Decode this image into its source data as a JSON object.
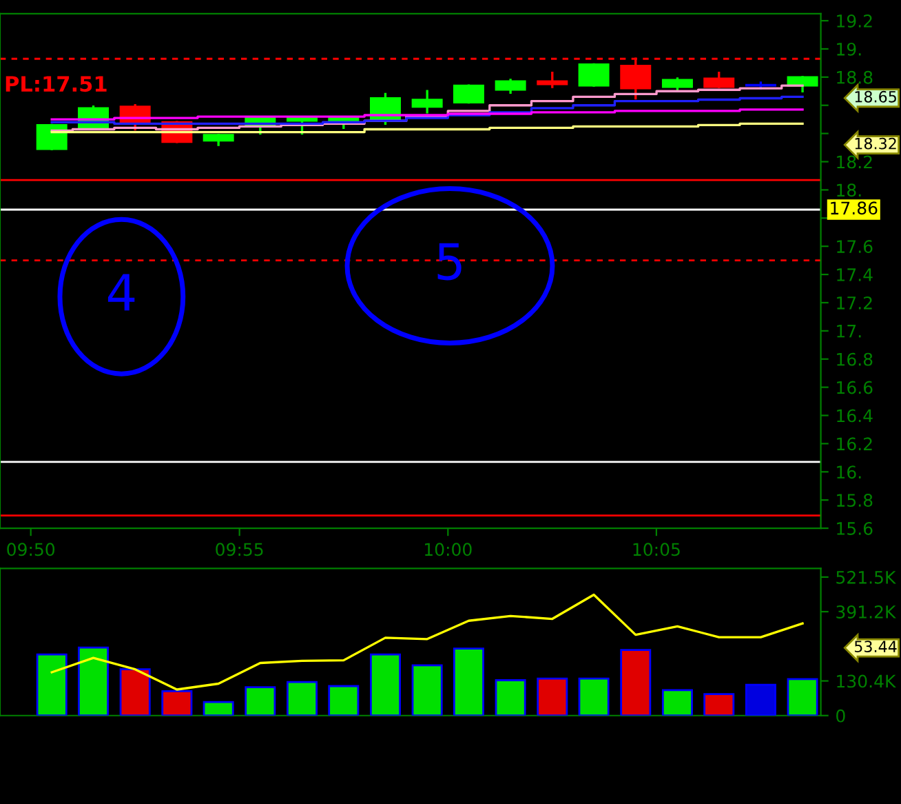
{
  "chart_data": [
    {
      "type": "candlestick",
      "x": [
        9.8417,
        9.8583,
        9.875,
        9.8917,
        9.9083,
        9.925,
        9.9417,
        9.9583,
        9.975,
        9.9917,
        10.0083,
        10.025,
        10.0417,
        10.0583,
        10.075,
        10.0917,
        10.1083,
        10.125,
        10.1417
      ],
      "ohlc": [
        [
          18.29,
          18.46,
          18.29,
          18.46
        ],
        [
          18.44,
          18.59,
          18.44,
          18.58
        ],
        [
          18.59,
          18.6,
          18.43,
          18.47
        ],
        [
          18.48,
          18.48,
          18.34,
          18.34
        ],
        [
          18.35,
          18.39,
          18.32,
          18.39
        ],
        [
          18.45,
          18.51,
          18.4,
          18.51
        ],
        [
          18.49,
          18.51,
          18.4,
          18.51
        ],
        [
          18.49,
          18.51,
          18.44,
          18.51
        ],
        [
          18.49,
          18.68,
          18.47,
          18.65
        ],
        [
          18.59,
          18.7,
          18.55,
          18.64
        ],
        [
          18.62,
          18.74,
          18.62,
          18.74
        ],
        [
          18.71,
          18.78,
          18.69,
          18.77
        ],
        [
          18.77,
          18.83,
          18.73,
          18.75
        ],
        [
          18.74,
          18.89,
          18.74,
          18.89
        ],
        [
          18.88,
          18.93,
          18.65,
          18.72
        ],
        [
          18.73,
          18.79,
          18.71,
          18.78
        ],
        [
          18.79,
          18.83,
          18.73,
          18.73
        ],
        [
          18.74,
          18.76,
          18.72,
          18.74
        ],
        [
          18.74,
          18.8,
          18.7,
          18.8
        ]
      ],
      "colors": [
        "#00ff00",
        "#00ff00",
        "#ff0000",
        "#ff0000",
        "#00ff00",
        "#00ff00",
        "#00ff00",
        "#00ff00",
        "#00ff00",
        "#00ff00",
        "#00ff00",
        "#00ff00",
        "#ff0000",
        "#00ff00",
        "#ff0000",
        "#00ff00",
        "#ff0000",
        "#0000ff",
        "#00ff00"
      ],
      "series": [
        {
          "type": "line",
          "color": "#ff99cc",
          "values": [
            18.42,
            18.43,
            18.44,
            18.43,
            18.44,
            18.45,
            18.46,
            18.47,
            18.49,
            18.52,
            18.56,
            18.6,
            18.63,
            18.66,
            18.68,
            18.7,
            18.71,
            18.72,
            18.74
          ]
        },
        {
          "type": "line",
          "color": "#2020ff",
          "values": [
            18.48,
            18.48,
            18.47,
            18.47,
            18.47,
            18.47,
            18.47,
            18.48,
            18.49,
            18.51,
            18.53,
            18.55,
            18.58,
            18.6,
            18.63,
            18.63,
            18.64,
            18.65,
            18.66
          ]
        },
        {
          "type": "line",
          "color": "#ff00ff",
          "values": [
            18.5,
            18.5,
            18.51,
            18.51,
            18.52,
            18.52,
            18.52,
            18.52,
            18.53,
            18.53,
            18.54,
            18.54,
            18.55,
            18.55,
            18.56,
            18.56,
            18.56,
            18.57,
            18.57
          ]
        },
        {
          "type": "line",
          "color": "#ffff80",
          "values": [
            18.41,
            18.41,
            18.41,
            18.41,
            18.41,
            18.41,
            18.41,
            18.41,
            18.43,
            18.43,
            18.43,
            18.44,
            18.44,
            18.45,
            18.45,
            18.45,
            18.46,
            18.47,
            18.47
          ]
        }
      ],
      "xlim": [
        9.821,
        10.149
      ],
      "xticks": [
        {
          "value": 9.8333,
          "label": "09:50"
        },
        {
          "value": 9.9167,
          "label": "09:55"
        },
        {
          "value": 10.0,
          "label": "10:00"
        },
        {
          "value": 10.0833,
          "label": "10:05"
        }
      ],
      "ylim": [
        15.6,
        19.25
      ],
      "yticks": [
        15.6,
        15.8,
        {
          "value": 16,
          "label": "16."
        },
        16.2,
        16.4,
        16.6,
        16.8,
        {
          "value": 17,
          "label": "17."
        },
        17.2,
        17.4,
        17.6,
        {
          "value": 17.8,
          "label": null
        },
        {
          "value": 18,
          "label": "18."
        },
        18.2,
        {
          "value": 18.4,
          "label": null
        },
        {
          "value": 18.6,
          "label": null
        },
        18.8,
        {
          "value": 19,
          "label": "19."
        },
        19.2
      ],
      "ref_lines": [
        {
          "axis": "y",
          "value": 18.93,
          "color": "#ff0000",
          "line_style": "dashed"
        },
        {
          "axis": "y",
          "value": 18.07,
          "color": "#ff0000",
          "line_style": "solid"
        },
        {
          "axis": "y",
          "value": 17.86,
          "label": "17.86",
          "color": "#ffffff",
          "line_style": "solid"
        },
        {
          "axis": "y",
          "value": 17.5,
          "color": "#ff0000",
          "line_style": "dashed"
        },
        {
          "axis": "y",
          "value": 16.07,
          "color": "#ffffff",
          "line_style": "solid"
        },
        {
          "axis": "y",
          "value": 15.69,
          "color": "#ff0000",
          "line_style": "solid"
        }
      ],
      "annotations": [
        "PL:17.51",
        "18.65",
        "18.32",
        "4",
        "5"
      ],
      "grid": false
    },
    {
      "type": "bar",
      "x": [
        9.8417,
        9.8583,
        9.875,
        9.8917,
        9.9083,
        9.925,
        9.9417,
        9.9583,
        9.975,
        9.9917,
        10.0083,
        10.025,
        10.0417,
        10.0583,
        10.075,
        10.0917,
        10.1083,
        10.125,
        10.1417
      ],
      "values": [
        230000,
        256000,
        174000,
        92000,
        51000,
        107000,
        126000,
        111000,
        230000,
        189000,
        252000,
        133000,
        139000,
        139000,
        247000,
        96000,
        81000,
        116000,
        137000
      ],
      "colors": [
        "#00e000",
        "#00e000",
        "#e00000",
        "#e00000",
        "#00e000",
        "#00e000",
        "#00e000",
        "#00e000",
        "#00e000",
        "#00e000",
        "#00e000",
        "#00e000",
        "#e00000",
        "#00e000",
        "#e00000",
        "#00e000",
        "#e00000",
        "#0000e0",
        "#00e000"
      ],
      "series": [
        {
          "type": "line",
          "color": "#ffff00",
          "values": [
            163000,
            217000,
            174000,
            98000,
            120000,
            198000,
            206000,
            208000,
            293000,
            288000,
            357000,
            375000,
            364000,
            455000,
            304000,
            336000,
            295000,
            295000,
            347000
          ]
        }
      ],
      "xlim": [
        9.821,
        10.149
      ],
      "ylim": [
        0,
        554000
      ],
      "yticks": [
        0,
        {
          "value": 130400,
          "label": "130.4K"
        },
        {
          "value": 391200,
          "label": "391.2K"
        },
        {
          "value": 521500,
          "label": "521.5K"
        }
      ],
      "tick_labels": "y",
      "annotations": [
        "53.44"
      ],
      "grid": false
    }
  ]
}
